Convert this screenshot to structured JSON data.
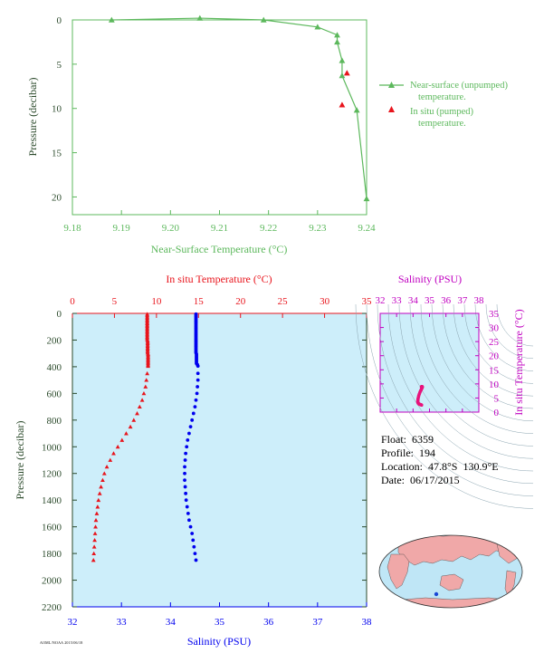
{
  "chart_data": [
    {
      "id": "near_surface",
      "type": "line",
      "xlabel": "Near-Surface Temperature (°C)",
      "ylabel": "Pressure (decibar)",
      "xlim": [
        9.18,
        9.24
      ],
      "ylim": [
        22,
        0
      ],
      "xticks": [
        9.18,
        9.19,
        9.2,
        9.21,
        9.22,
        9.23,
        9.24
      ],
      "yticks": [
        0,
        5,
        10,
        15,
        20
      ],
      "legend": "right",
      "grid": false,
      "series": [
        {
          "name": "Near-surface (unpumped) temperature.",
          "color": "#5cb85c",
          "marker": "triangle",
          "line": true,
          "x": [
            9.188,
            9.206,
            9.219,
            9.23,
            9.234,
            9.234,
            9.235,
            9.235,
            9.238,
            9.24
          ],
          "y": [
            0,
            -0.2,
            0,
            0.8,
            1.7,
            2.5,
            4.6,
            6.3,
            10.2,
            20.2
          ]
        },
        {
          "name": "In situ (pumped) temperature.",
          "color": "#e8141c",
          "marker": "triangle",
          "line": false,
          "x": [
            9.236,
            9.235
          ],
          "y": [
            6,
            9.6
          ]
        }
      ]
    },
    {
      "id": "profile",
      "type": "scatter",
      "ylabel": "Pressure (decibar)",
      "top_axis_label": "In situ Temperature (°C)",
      "bottom_axis_label": "Salinity (PSU)",
      "temp_lim": [
        0,
        35
      ],
      "temp_ticks": [
        0,
        5,
        10,
        15,
        20,
        25,
        30,
        35
      ],
      "sal_lim": [
        32,
        38
      ],
      "sal_ticks": [
        32,
        33,
        34,
        35,
        36,
        37,
        38
      ],
      "ylim": [
        2200,
        0
      ],
      "yticks": [
        0,
        200,
        400,
        600,
        800,
        1000,
        1200,
        1400,
        1600,
        1800,
        2000,
        2200
      ],
      "background": "#cdeefa",
      "temperature": {
        "color": "#e8141c",
        "marker": "triangle",
        "pressure": [
          5,
          15,
          25,
          35,
          45,
          55,
          65,
          75,
          85,
          95,
          105,
          115,
          125,
          135,
          145,
          155,
          165,
          175,
          185,
          195,
          205,
          215,
          225,
          235,
          245,
          255,
          265,
          275,
          285,
          295,
          305,
          315,
          325,
          335,
          345,
          355,
          365,
          375,
          385,
          395,
          450,
          500,
          550,
          600,
          650,
          700,
          750,
          800,
          850,
          900,
          950,
          1000,
          1050,
          1100,
          1150,
          1200,
          1250,
          1300,
          1350,
          1400,
          1450,
          1500,
          1550,
          1600,
          1650,
          1700,
          1750,
          1800,
          1850
        ],
        "temp": [
          8.9,
          8.9,
          8.9,
          8.9,
          8.9,
          8.9,
          8.9,
          8.9,
          8.9,
          8.9,
          8.9,
          8.9,
          8.9,
          8.9,
          8.9,
          8.9,
          8.9,
          8.9,
          8.9,
          8.9,
          8.95,
          8.95,
          8.95,
          8.95,
          8.95,
          8.95,
          8.95,
          8.95,
          8.95,
          8.95,
          9.0,
          9.0,
          9.0,
          9.0,
          9.0,
          9.0,
          9.0,
          9.0,
          9.0,
          9.0,
          8.9,
          8.8,
          8.7,
          8.5,
          8.3,
          8.0,
          7.7,
          7.3,
          6.9,
          6.4,
          5.9,
          5.4,
          4.9,
          4.5,
          4.1,
          3.8,
          3.6,
          3.4,
          3.25,
          3.1,
          3.0,
          2.9,
          2.8,
          2.75,
          2.7,
          2.65,
          2.6,
          2.55,
          2.5
        ]
      },
      "salinity": {
        "color": "#0000ee",
        "marker": "circle",
        "pressure": [
          5,
          15,
          25,
          35,
          45,
          55,
          65,
          75,
          85,
          95,
          105,
          115,
          125,
          135,
          145,
          155,
          165,
          175,
          185,
          195,
          205,
          215,
          225,
          235,
          245,
          255,
          265,
          275,
          285,
          295,
          305,
          315,
          325,
          335,
          345,
          355,
          365,
          375,
          385,
          395,
          450,
          500,
          550,
          600,
          650,
          700,
          750,
          800,
          850,
          900,
          950,
          1000,
          1050,
          1100,
          1150,
          1200,
          1250,
          1300,
          1350,
          1400,
          1450,
          1500,
          1550,
          1600,
          1650,
          1700,
          1750,
          1800,
          1850
        ],
        "salinity": [
          34.52,
          34.52,
          34.52,
          34.52,
          34.52,
          34.52,
          34.52,
          34.52,
          34.52,
          34.52,
          34.52,
          34.52,
          34.52,
          34.52,
          34.52,
          34.52,
          34.52,
          34.52,
          34.52,
          34.52,
          34.52,
          34.52,
          34.52,
          34.52,
          34.52,
          34.52,
          34.52,
          34.52,
          34.52,
          34.52,
          34.53,
          34.53,
          34.53,
          34.53,
          34.53,
          34.53,
          34.53,
          34.53,
          34.55,
          34.56,
          34.56,
          34.56,
          34.55,
          34.54,
          34.52,
          34.5,
          34.47,
          34.44,
          34.41,
          34.38,
          34.35,
          34.33,
          34.31,
          34.3,
          34.29,
          34.29,
          34.29,
          34.3,
          34.31,
          34.32,
          34.34,
          34.36,
          34.38,
          34.41,
          34.44,
          34.46,
          34.48,
          34.5,
          34.52
        ]
      }
    },
    {
      "id": "ts",
      "type": "scatter",
      "title": "Salinity (PSU)",
      "ylabel": "In situ Temperature (°C)",
      "xlim": [
        32,
        38
      ],
      "ylim": [
        0,
        35
      ],
      "xticks": [
        32,
        33,
        34,
        35,
        36,
        37,
        38
      ],
      "yticks": [
        0,
        5,
        10,
        15,
        20,
        25,
        30,
        35
      ],
      "color": "#e8137c",
      "point_count": 48,
      "temp_range": [
        2.5,
        9.0
      ],
      "salinity_range": [
        34.3,
        34.56
      ]
    }
  ],
  "info": {
    "float": "Float:  6359",
    "profile": "Profile:  194",
    "location": "Location:  47.8°S  130.9°E",
    "date": "Date:  06/17/2015"
  },
  "map": {
    "ocean_color": "#bfe6f6",
    "land_color": "#f0a8a8",
    "marker_color": "#1a47d6",
    "marker_lat": -47.8,
    "marker_lon": 130.9
  },
  "footer": {
    "code": "AOML/NOAA 2015/06/18"
  }
}
